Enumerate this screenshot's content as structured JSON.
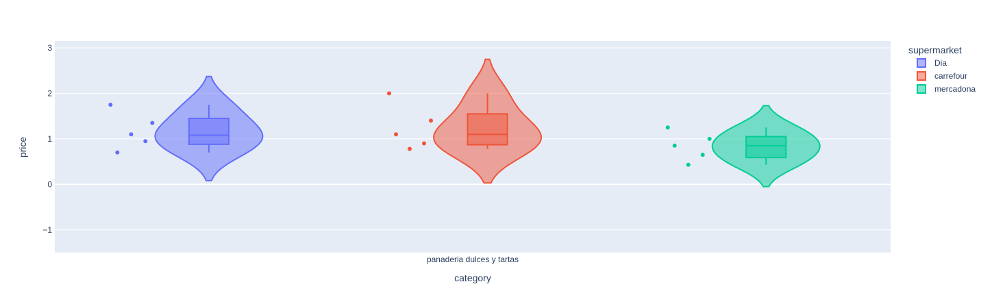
{
  "chart_data": {
    "type": "violin",
    "xlabel": "category",
    "ylabel": "price",
    "categories": [
      "panaderia dulces y tartas"
    ],
    "ylim": [
      -1.5,
      3.15
    ],
    "yticks": [
      -1,
      0,
      1,
      2,
      3
    ],
    "ytick_labels": [
      "−1",
      "0",
      "1",
      "2",
      "3"
    ],
    "grid": true,
    "legend": {
      "title": "supermarket",
      "position": "right"
    },
    "series": [
      {
        "name": "Dia",
        "color": "#636efa",
        "points": [
          1.75,
          1.1,
          0.7,
          0.95,
          1.35
        ],
        "box": {
          "q1": 0.88,
          "median": 1.08,
          "q3": 1.45,
          "lower_whisker": 0.7,
          "upper_whisker": 1.75
        },
        "kde_range": [
          0.08,
          2.37
        ]
      },
      {
        "name": "carrefour",
        "color": "#ef553b",
        "points": [
          2.0,
          0.78,
          1.1,
          0.9,
          1.4
        ],
        "box": {
          "q1": 0.87,
          "median": 1.1,
          "q3": 1.55,
          "lower_whisker": 0.78,
          "upper_whisker": 2.0
        },
        "kde_range": [
          0.03,
          2.75
        ]
      },
      {
        "name": "mercadona",
        "color": "#00cc96",
        "points": [
          1.25,
          0.43,
          0.85,
          0.65,
          1.0
        ],
        "box": {
          "q1": 0.59,
          "median": 0.85,
          "q3": 1.05,
          "lower_whisker": 0.43,
          "upper_whisker": 1.25
        },
        "kde_range": [
          -0.05,
          1.73
        ]
      }
    ]
  }
}
